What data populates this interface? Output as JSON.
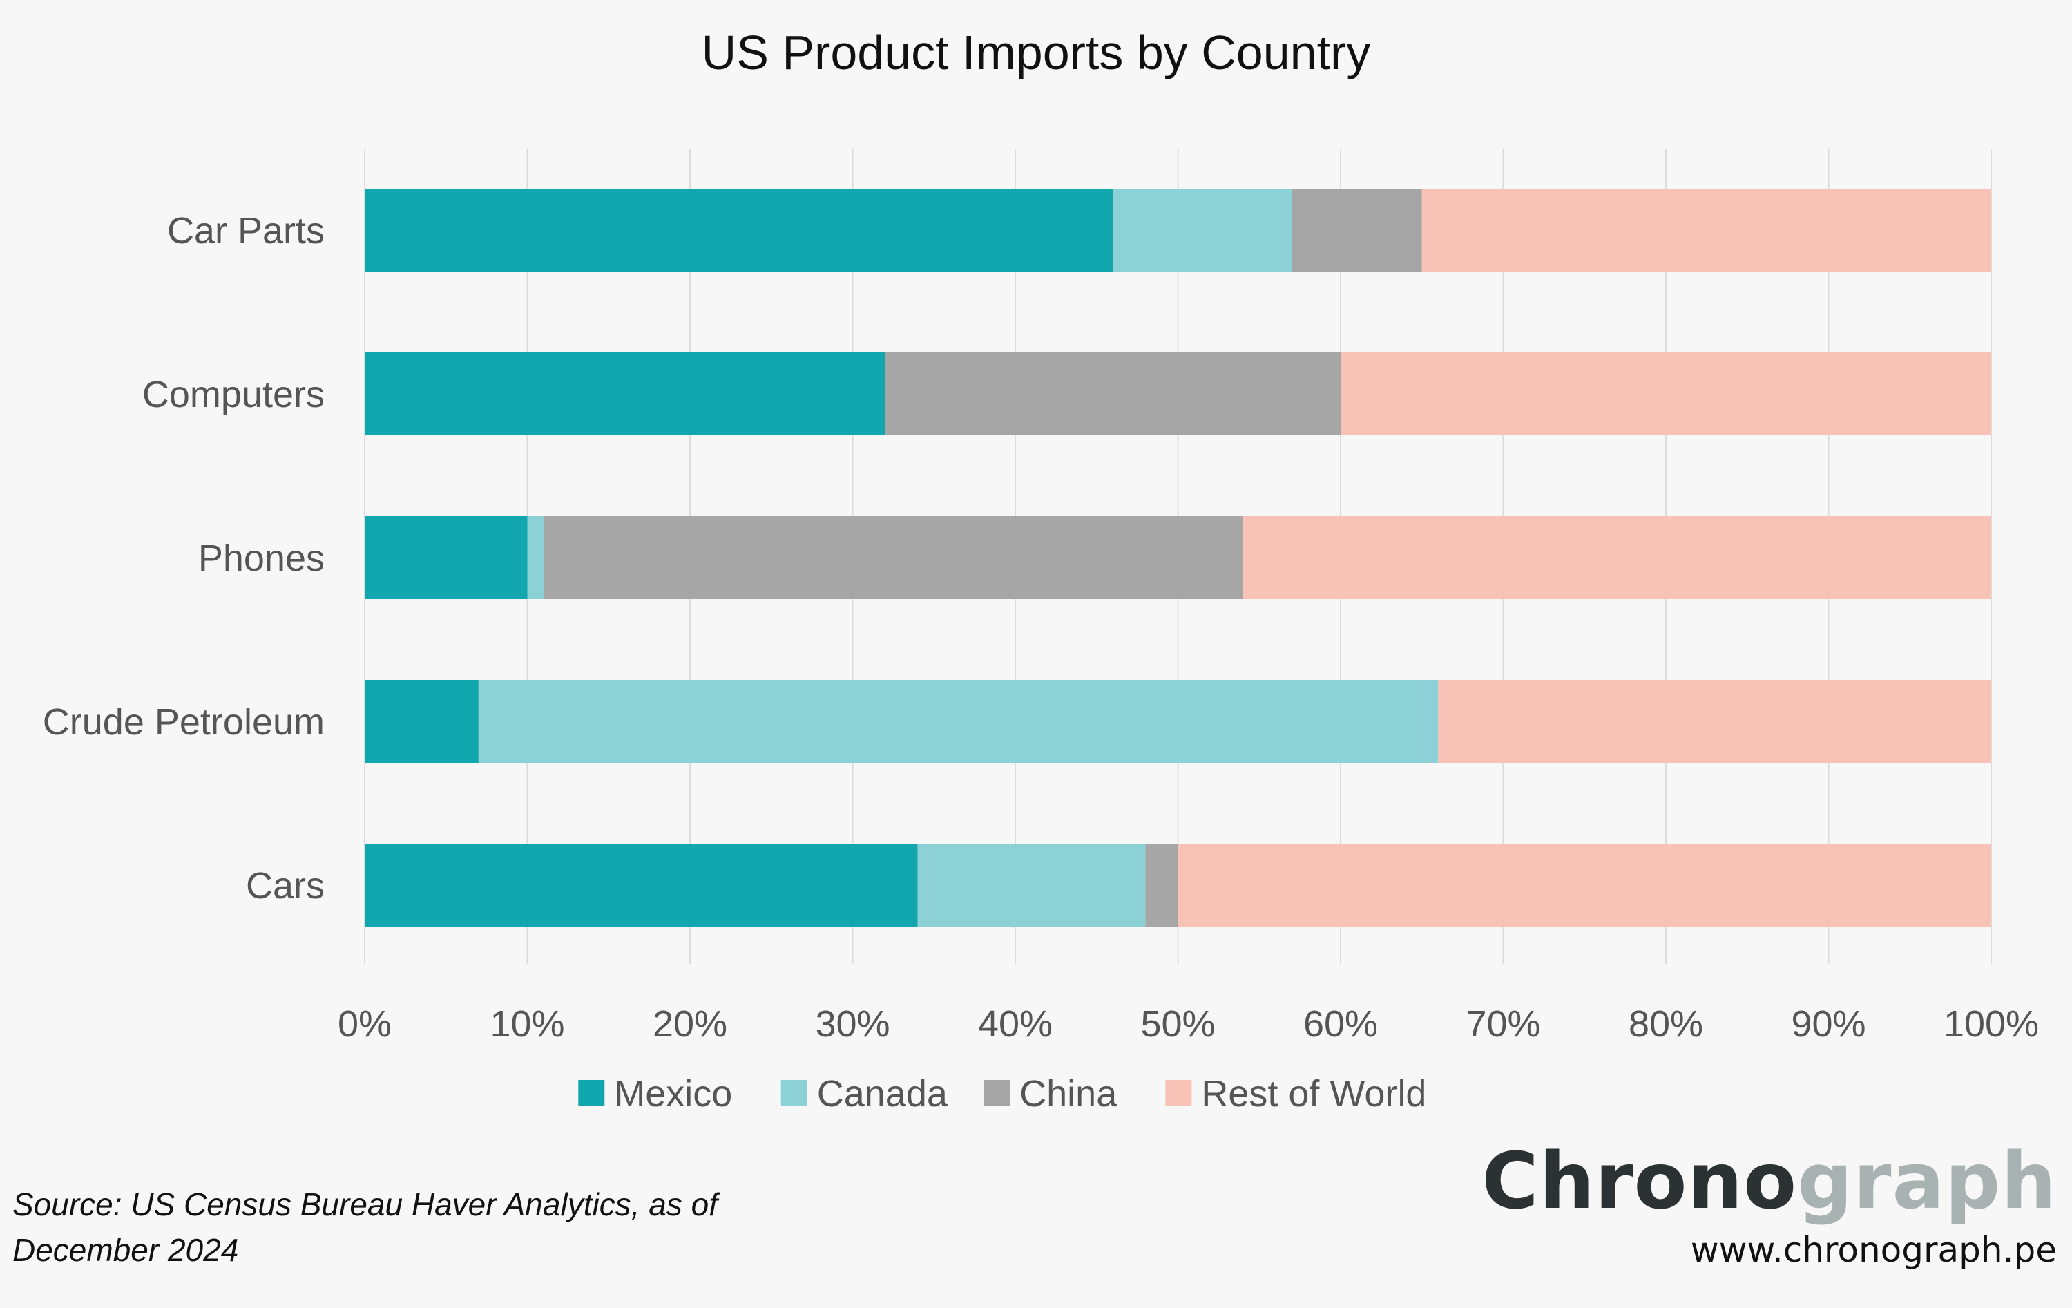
{
  "chart_data": {
    "type": "bar",
    "orientation": "horizontal",
    "stacked": true,
    "title": "US Product Imports by Country",
    "categories": [
      "Car Parts",
      "Computers",
      "Phones",
      "Crude Petroleum",
      "Cars"
    ],
    "series": [
      {
        "name": "Mexico",
        "color": "#12a6ae",
        "values": [
          46,
          32,
          10,
          7,
          34
        ]
      },
      {
        "name": "Canada",
        "color": "#8bd1d6",
        "values": [
          11,
          0,
          1,
          59,
          14
        ]
      },
      {
        "name": "China",
        "color": "#a6a6a6",
        "values": [
          8,
          28,
          43,
          0,
          2
        ]
      },
      {
        "name": "Rest of  World",
        "color": "#f8c2b6",
        "values": [
          35,
          40,
          46,
          34,
          50
        ]
      }
    ],
    "x_ticks": [
      "0%",
      "10%",
      "20%",
      "30%",
      "40%",
      "50%",
      "60%",
      "70%",
      "80%",
      "90%",
      "100%"
    ],
    "xlim": [
      0,
      100
    ],
    "grid": true,
    "legend": "bottom"
  },
  "footer": {
    "source_line1": "Source: US Census Bureau Haver Analytics, as of",
    "source_line2": "December 2024"
  },
  "brand": {
    "logo_dark": "Chrono",
    "logo_light": "graph",
    "url": "www.chronograph.pe"
  }
}
